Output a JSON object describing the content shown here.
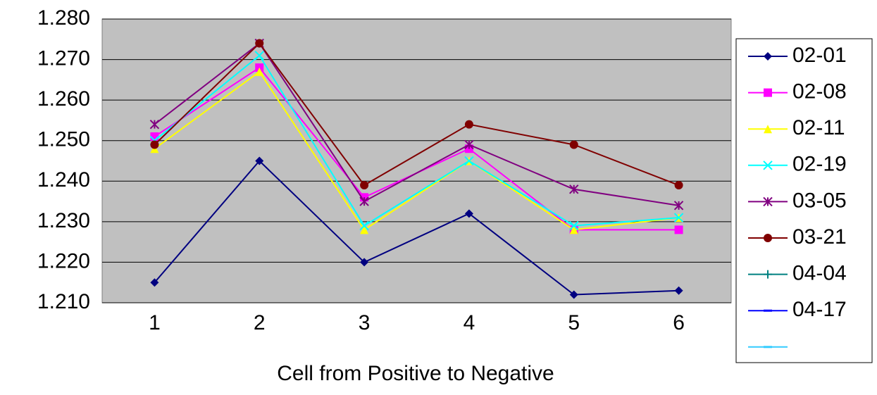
{
  "chart_data": {
    "type": "line",
    "x_label": "Cell from Positive to Negative",
    "categories": [
      "1",
      "2",
      "3",
      "4",
      "5",
      "6"
    ],
    "ylim": [
      1.21,
      1.28
    ],
    "yticks": [
      {
        "value": 1.21,
        "label": "1.210"
      },
      {
        "value": 1.22,
        "label": "1.220"
      },
      {
        "value": 1.23,
        "label": "1.230"
      },
      {
        "value": 1.24,
        "label": "1.240"
      },
      {
        "value": 1.25,
        "label": "1.250"
      },
      {
        "value": 1.26,
        "label": "1.260"
      },
      {
        "value": 1.27,
        "label": "1.270"
      },
      {
        "value": 1.28,
        "label": "1.280"
      }
    ],
    "grid": true,
    "legend": "right",
    "series": [
      {
        "name": "02-01",
        "color": "#000080",
        "marker": "diamond",
        "values": [
          1.215,
          1.245,
          1.22,
          1.232,
          1.212,
          1.213
        ]
      },
      {
        "name": "02-08",
        "color": "#ff00ff",
        "marker": "square",
        "values": [
          1.251,
          1.268,
          1.236,
          1.248,
          1.228,
          1.228
        ]
      },
      {
        "name": "02-11",
        "color": "#ffff00",
        "marker": "triangle",
        "values": [
          1.248,
          1.267,
          1.228,
          1.245,
          1.228,
          1.231
        ]
      },
      {
        "name": "02-19",
        "color": "#00ffff",
        "marker": "x",
        "values": [
          1.25,
          1.271,
          1.229,
          1.245,
          1.229,
          1.231
        ]
      },
      {
        "name": "03-05",
        "color": "#800080",
        "marker": "star",
        "values": [
          1.254,
          1.274,
          1.235,
          1.249,
          1.238,
          1.234
        ]
      },
      {
        "name": "03-21",
        "color": "#800000",
        "marker": "circle",
        "values": [
          1.249,
          1.274,
          1.239,
          1.254,
          1.249,
          1.239
        ]
      },
      {
        "name": "04-04",
        "color": "#008080",
        "marker": "plus",
        "values": [
          null,
          null,
          null,
          null,
          null,
          null
        ]
      },
      {
        "name": "04-17",
        "color": "#0000ff",
        "marker": "dash",
        "values": [
          null,
          null,
          null,
          null,
          null,
          null
        ]
      },
      {
        "name": null,
        "color": "#33ccff",
        "marker": "dash",
        "values": [
          null,
          null,
          null,
          null,
          null,
          null
        ]
      }
    ]
  }
}
